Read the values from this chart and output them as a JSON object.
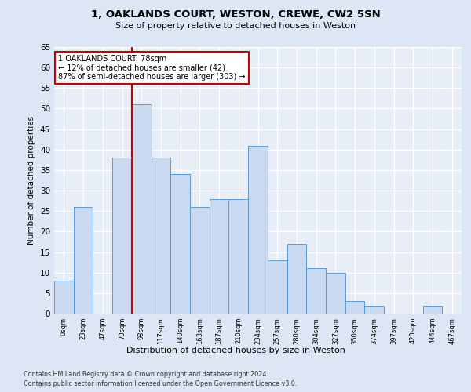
{
  "title1": "1, OAKLANDS COURT, WESTON, CREWE, CW2 5SN",
  "title2": "Size of property relative to detached houses in Weston",
  "xlabel": "Distribution of detached houses by size in Weston",
  "ylabel": "Number of detached properties",
  "categories": [
    "0sqm",
    "23sqm",
    "47sqm",
    "70sqm",
    "93sqm",
    "117sqm",
    "140sqm",
    "163sqm",
    "187sqm",
    "210sqm",
    "234sqm",
    "257sqm",
    "280sqm",
    "304sqm",
    "327sqm",
    "350sqm",
    "374sqm",
    "397sqm",
    "420sqm",
    "444sqm",
    "467sqm"
  ],
  "values": [
    8,
    26,
    0,
    38,
    51,
    38,
    34,
    26,
    28,
    28,
    41,
    13,
    17,
    11,
    10,
    3,
    2,
    0,
    0,
    2,
    0
  ],
  "bar_color": "#c9d9f0",
  "bar_edge_color": "#5b9bd5",
  "vline_x": 3.5,
  "vline_color": "#cc0000",
  "annotation_title": "1 OAKLANDS COURT: 78sqm",
  "annotation_line1": "← 12% of detached houses are smaller (42)",
  "annotation_line2": "87% of semi-detached houses are larger (303) →",
  "annotation_box_color": "#cc0000",
  "ylim": [
    0,
    65
  ],
  "yticks": [
    0,
    5,
    10,
    15,
    20,
    25,
    30,
    35,
    40,
    45,
    50,
    55,
    60,
    65
  ],
  "footer1": "Contains HM Land Registry data © Crown copyright and database right 2024.",
  "footer2": "Contains public sector information licensed under the Open Government Licence v3.0.",
  "bg_color": "#dce6f5",
  "plot_bg_color": "#e8eef8"
}
